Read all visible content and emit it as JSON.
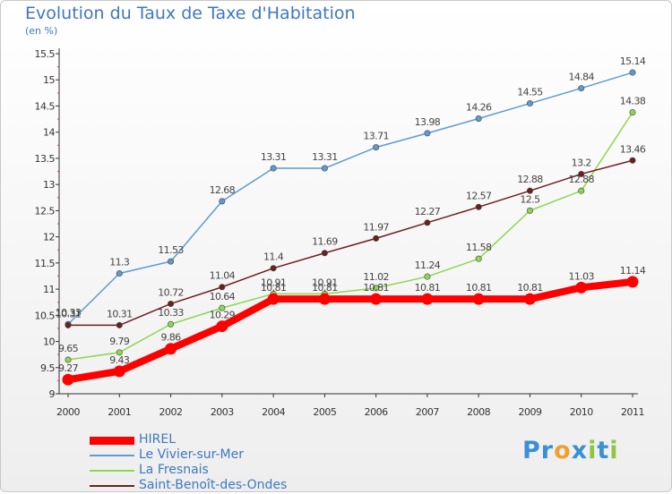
{
  "header": {
    "title": "Evolution du Taux de Taxe d'Habitation",
    "unit": "(en %)"
  },
  "logo": {
    "text": "Proxiti",
    "letters": [
      {
        "ch": "P",
        "color": "#3a8fd6"
      },
      {
        "ch": "r",
        "color": "#3a8fd6"
      },
      {
        "ch": "o",
        "color": "#f0a030"
      },
      {
        "ch": "x",
        "color": "#3a8fd6"
      },
      {
        "ch": "i",
        "color": "#8fc63f"
      },
      {
        "ch": "t",
        "color": "#3a8fd6"
      },
      {
        "ch": "i",
        "color": "#8fc63f"
      }
    ]
  },
  "chart_data": {
    "type": "line",
    "title": "Evolution du Taux de Taxe d'Habitation",
    "ylabel": "(en %)",
    "xlabel": "",
    "x": [
      "2000",
      "2001",
      "2002",
      "2003",
      "2004",
      "2005",
      "2006",
      "2007",
      "2008",
      "2009",
      "2010",
      "2011"
    ],
    "ylim": [
      9,
      15.5
    ],
    "yticks": [
      "9",
      "9.5",
      "10",
      "10.5",
      "11",
      "11.5",
      "12",
      "12.5",
      "13",
      "13.5",
      "14",
      "14.5",
      "15",
      "15.5"
    ],
    "grid": false,
    "legend_position": "bottom-left",
    "series": [
      {
        "name": "HIREL",
        "color": "#ff0000",
        "emphasis": true,
        "values": [
          9.27,
          9.43,
          9.86,
          10.29,
          10.81,
          10.81,
          10.81,
          10.81,
          10.81,
          10.81,
          11.03,
          11.14
        ],
        "labels": [
          "9.27",
          "9.43",
          "9.86",
          "10.29",
          "10.81",
          "10.81",
          "10.81",
          "10.81",
          "10.81",
          "10.81",
          "11.03",
          "11.14"
        ]
      },
      {
        "name": "Le Vivier-sur-Mer",
        "color": "#5e9bd0",
        "values": [
          10.33,
          11.3,
          11.53,
          12.68,
          13.31,
          13.31,
          13.71,
          13.98,
          14.26,
          14.55,
          14.84,
          15.14
        ],
        "labels": [
          "10.33",
          "11.3",
          "11.53",
          "12.68",
          "13.31",
          "13.31",
          "13.71",
          "13.98",
          "14.26",
          "14.55",
          "14.84",
          "15.14"
        ]
      },
      {
        "name": "La Fresnais",
        "color": "#8fd650",
        "values": [
          9.65,
          9.79,
          10.33,
          10.64,
          10.91,
          10.91,
          11.02,
          11.24,
          11.58,
          12.5,
          12.88,
          14.38
        ],
        "labels": [
          "9.65",
          "9.79",
          "10.33",
          "10.64",
          "10.91",
          "10.91",
          "11.02",
          "11.24",
          "11.58",
          "12.5",
          "12.88",
          "14.38"
        ]
      },
      {
        "name": "Saint-Benoît-des-Ondes",
        "color": "#6b1f1f",
        "values": [
          10.31,
          10.31,
          10.72,
          11.04,
          11.4,
          11.69,
          11.97,
          12.27,
          12.57,
          12.88,
          13.2,
          13.46
        ],
        "labels": [
          "10.31",
          "10.31",
          "10.72",
          "11.04",
          "11.4",
          "11.69",
          "11.97",
          "12.27",
          "12.57",
          "12.88",
          "13.2",
          "13.46"
        ]
      }
    ]
  }
}
